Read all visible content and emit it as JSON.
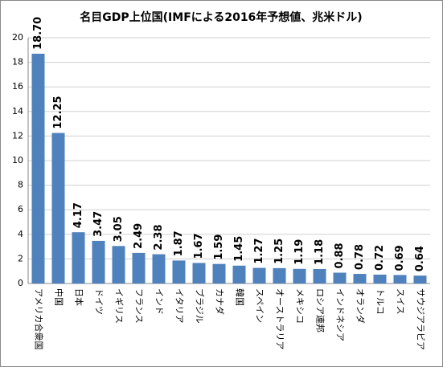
{
  "chart_data": {
    "type": "bar",
    "title": "名目GDP上位国(IMFによる2016年予想値、兆米ドル)",
    "categories": [
      "アメリカ合衆国",
      "中国",
      "日本",
      "ドイツ",
      "イギリス",
      "フランス",
      "インド",
      "イタリア",
      "ブラジル",
      "カナダ",
      "韓国",
      "スペイン",
      "オーストラリア",
      "メキシコ",
      "ロシア連邦",
      "インドネシア",
      "オランダ",
      "トルコ",
      "スイス",
      "サウジアラビア"
    ],
    "values": [
      18.7,
      12.25,
      4.17,
      3.47,
      3.05,
      2.49,
      2.38,
      1.87,
      1.67,
      1.59,
      1.45,
      1.27,
      1.25,
      1.19,
      1.18,
      0.88,
      0.78,
      0.72,
      0.69,
      0.64
    ],
    "value_labels": [
      "18.70",
      "12.25",
      "4.17",
      "3.47",
      "3.05",
      "2.49",
      "2.38",
      "1.87",
      "1.67",
      "1.59",
      "1.45",
      "1.27",
      "1.25",
      "1.19",
      "1.18",
      "0.88",
      "0.78",
      "0.72",
      "0.69",
      "0.64"
    ],
    "color": "#4f81bd",
    "ylim": [
      0,
      20
    ],
    "yticks": [
      0,
      2,
      4,
      6,
      8,
      10,
      12,
      14,
      16,
      18,
      20
    ],
    "grid": true
  }
}
